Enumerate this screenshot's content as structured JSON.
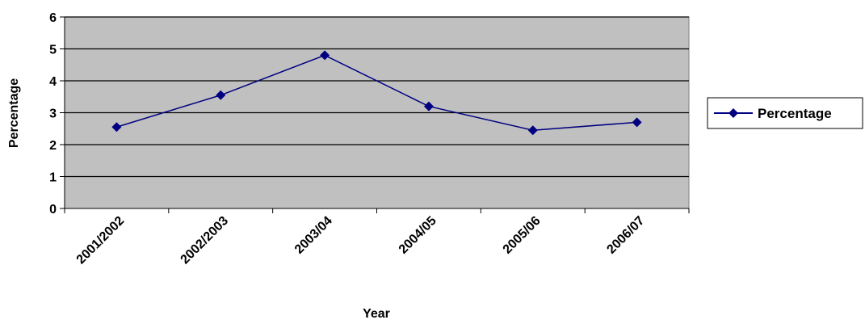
{
  "chart_data": {
    "type": "line",
    "title": "",
    "xlabel": "Year",
    "ylabel": "Percentage",
    "categories": [
      "2001/2002",
      "2002/2003",
      "2003/04",
      "2004/05",
      "2005/06",
      "2006/07"
    ],
    "series": [
      {
        "name": "Percentage",
        "values": [
          2.55,
          3.55,
          4.8,
          3.2,
          2.45,
          2.7
        ]
      }
    ],
    "ylim": [
      0,
      6
    ],
    "yticks": [
      0,
      1,
      2,
      3,
      4,
      5,
      6
    ],
    "grid": true,
    "legend_position": "right",
    "colors": {
      "plot_bg": "#c0c0c0",
      "line": "#000080",
      "gridline": "#000000"
    }
  }
}
